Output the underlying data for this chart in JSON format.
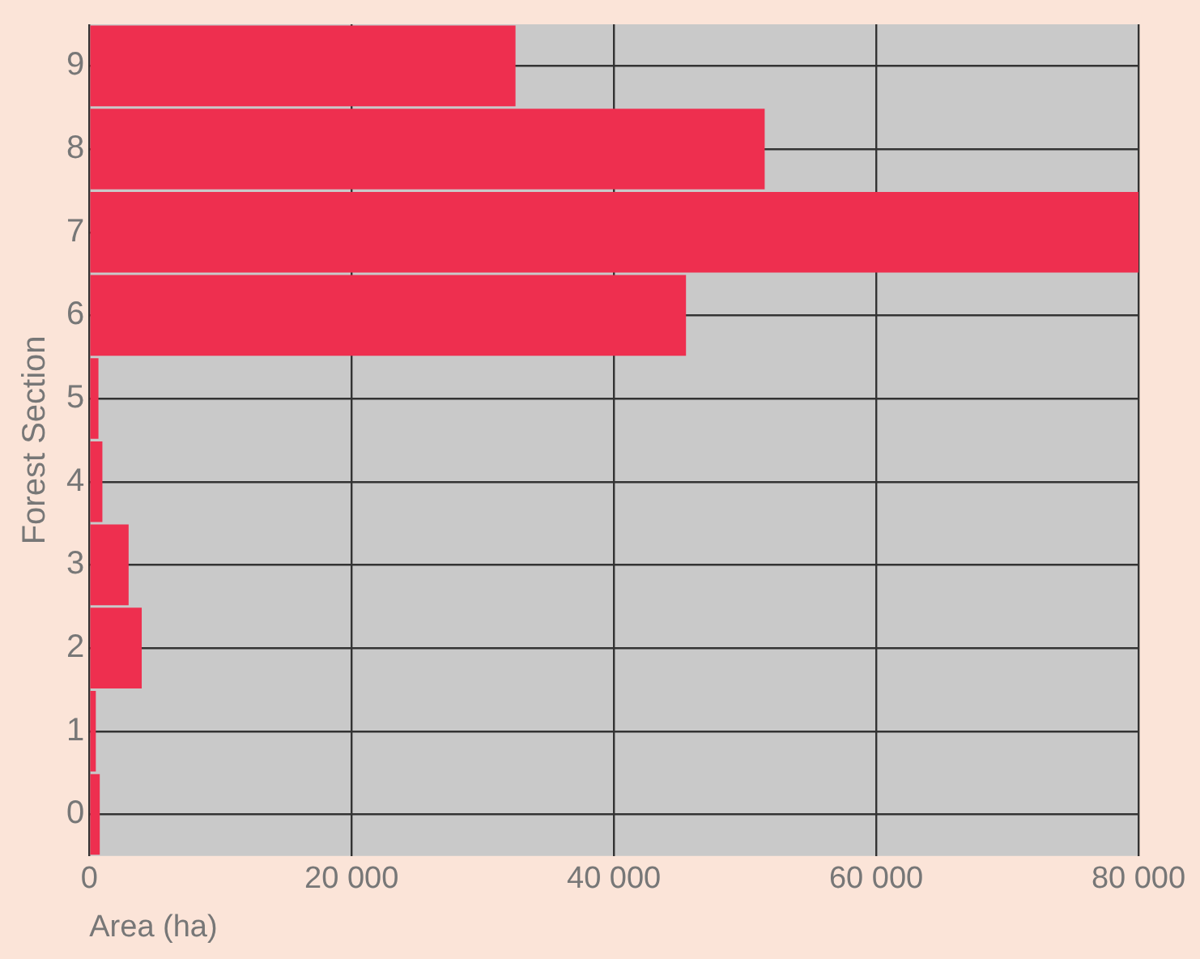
{
  "chart_data": {
    "type": "bar",
    "orientation": "horizontal",
    "xlabel": "Area (ha)",
    "ylabel": "Forest Section",
    "categories": [
      "9",
      "8",
      "7",
      "6",
      "5",
      "4",
      "3",
      "2",
      "1",
      "0"
    ],
    "values": [
      32500,
      51500,
      80000,
      45500,
      700,
      1000,
      3000,
      4000,
      500,
      800
    ],
    "color": "#ee2f4f",
    "xlim": [
      0,
      80000
    ],
    "xticks": [
      0,
      {
        "value": 20000,
        "label": "20 000"
      },
      {
        "value": 40000,
        "label": "40 000"
      },
      {
        "value": 60000,
        "label": "60 000"
      },
      {
        "value": 80000,
        "label": "80 000"
      }
    ],
    "grid": true,
    "legend": false
  }
}
